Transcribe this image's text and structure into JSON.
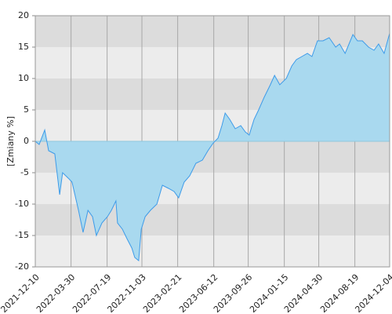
{
  "chart_data": {
    "type": "area",
    "y_label": "[Zmiany %]",
    "x": [
      "2021-12-10",
      "2021-12-22",
      "2022-01-08",
      "2022-01-20",
      "2022-02-08",
      "2022-02-23",
      "2022-03-04",
      "2022-03-24",
      "2022-04-02",
      "2022-04-22",
      "2022-05-06",
      "2022-05-21",
      "2022-06-04",
      "2022-06-16",
      "2022-07-03",
      "2022-07-20",
      "2022-08-01",
      "2022-08-15",
      "2022-08-20",
      "2022-09-04",
      "2022-09-18",
      "2022-10-03",
      "2022-10-12",
      "2022-10-24",
      "2022-11-01",
      "2022-11-13",
      "2022-11-29",
      "2022-12-19",
      "2023-01-05",
      "2023-01-24",
      "2023-02-10",
      "2023-02-24",
      "2023-03-13",
      "2023-03-30",
      "2023-04-18",
      "2023-05-08",
      "2023-05-25",
      "2023-06-10",
      "2023-06-25",
      "2023-07-07",
      "2023-07-17",
      "2023-07-31",
      "2023-08-17",
      "2023-09-03",
      "2023-09-17",
      "2023-09-29",
      "2023-10-14",
      "2023-10-28",
      "2023-11-14",
      "2023-12-03",
      "2023-12-16",
      "2024-01-01",
      "2024-01-21",
      "2024-02-07",
      "2024-02-21",
      "2024-03-09",
      "2024-03-26",
      "2024-04-09",
      "2024-04-26",
      "2024-05-13",
      "2024-06-01",
      "2024-06-21",
      "2024-07-03",
      "2024-07-20",
      "2024-08-13",
      "2024-08-27",
      "2024-09-11",
      "2024-09-30",
      "2024-10-17",
      "2024-10-31",
      "2024-11-17",
      "2024-12-04"
    ],
    "values": [
      0,
      -0.5,
      1.8,
      -1.5,
      -2,
      -8.5,
      -5,
      -6,
      -6.5,
      -11,
      -14.5,
      -11,
      -12,
      -15,
      -13,
      -12,
      -11,
      -9.5,
      -13,
      -14,
      -15.5,
      -17,
      -18.5,
      -19,
      -14,
      -12,
      -11,
      -10,
      -7,
      -7.5,
      -8,
      -9,
      -6.5,
      -5.5,
      -3.5,
      -3,
      -1.5,
      -0.3,
      0.5,
      2.5,
      4.5,
      3.5,
      2,
      2.5,
      1.5,
      1,
      3.5,
      5,
      7,
      9,
      10.5,
      9,
      10,
      12,
      13,
      13.5,
      14,
      13.5,
      16,
      16,
      16.5,
      15,
      15.5,
      14,
      17,
      16,
      16,
      15,
      14.5,
      15.5,
      14,
      17.2
    ],
    "color": "#3d9be9",
    "area_color": "#a9d9ef",
    "xlim": [
      "2021-12-10",
      "2024-12-04"
    ],
    "xticks": [
      "2021-12-10",
      "2022-03-30",
      "2022-07-19",
      "2022-11-03",
      "2023-02-21",
      "2023-06-12",
      "2023-09-26",
      "2024-01-15",
      "2024-04-30",
      "2024-08-19",
      "2024-12-04"
    ],
    "ylim": [
      -20,
      20
    ],
    "yticks": [
      -20,
      -15,
      -10,
      -5,
      0,
      5,
      10,
      15,
      20
    ],
    "grid": true
  }
}
